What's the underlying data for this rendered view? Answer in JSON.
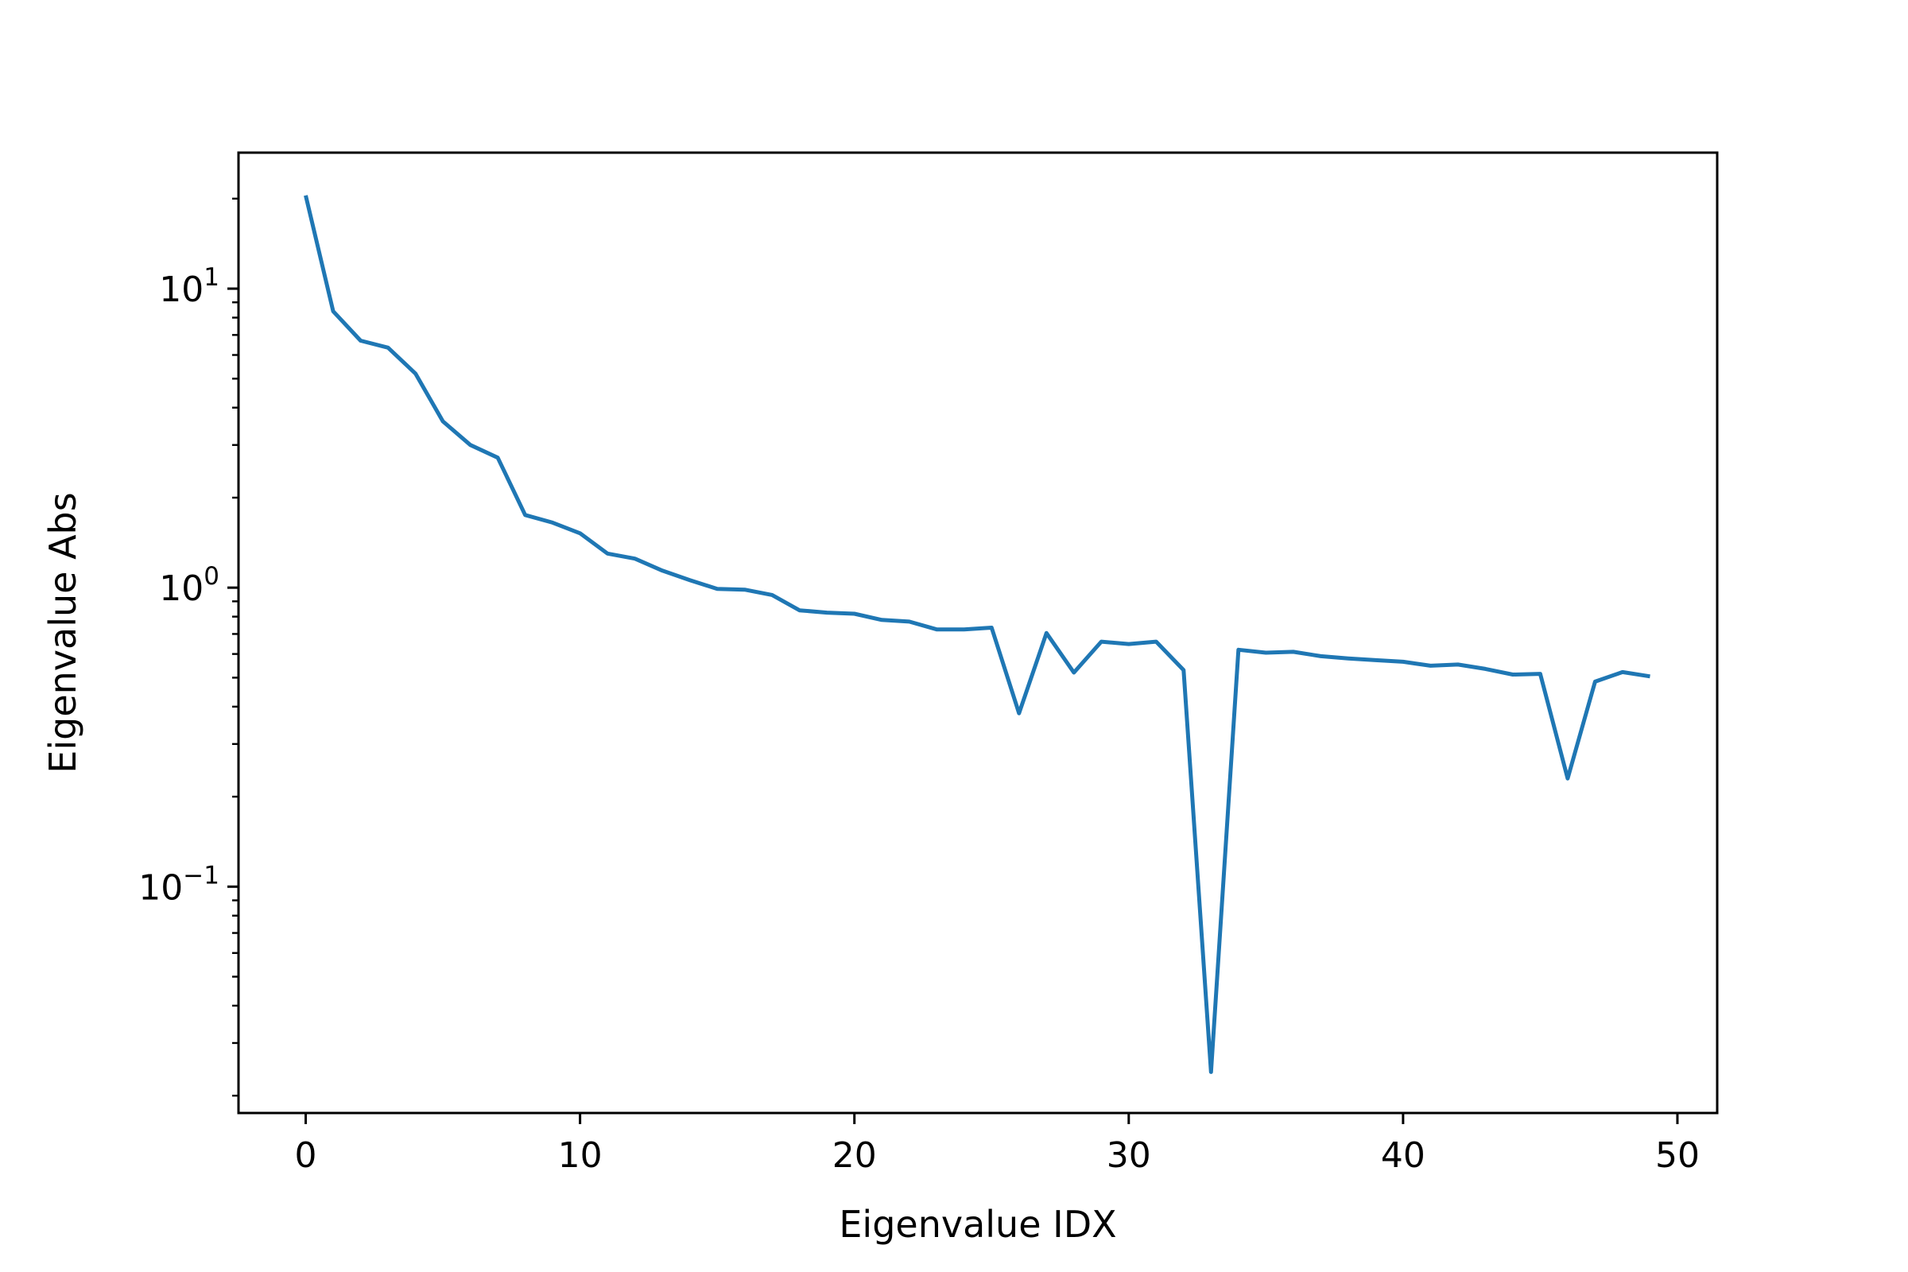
{
  "chart_data": {
    "type": "line",
    "title": "",
    "xlabel": "Eigenvalue IDX",
    "ylabel": "Eigenvalue Abs",
    "yscale": "log",
    "xlim": [
      -2.45,
      51.45
    ],
    "ylim": [
      0.0175,
      28.5
    ],
    "grid": false,
    "legend": "none",
    "x_ticks": [
      0,
      10,
      20,
      30,
      40,
      50
    ],
    "x_tick_labels": [
      "0",
      "10",
      "20",
      "30",
      "40",
      "50"
    ],
    "y_ticks": [
      {
        "value": 0.1,
        "base": "10",
        "exponent": "−1"
      },
      {
        "value": 1,
        "base": "10",
        "exponent": "0"
      },
      {
        "value": 10,
        "base": "10",
        "exponent": "1"
      }
    ],
    "series": [
      {
        "color": "#1f77b4",
        "x": [
          0,
          1,
          2,
          3,
          4,
          5,
          6,
          7,
          8,
          9,
          10,
          11,
          12,
          13,
          14,
          15,
          16,
          17,
          18,
          19,
          20,
          21,
          22,
          23,
          24,
          25,
          26,
          27,
          28,
          29,
          30,
          31,
          32,
          33,
          34,
          35,
          36,
          37,
          38,
          39,
          40,
          41,
          42,
          43,
          44,
          45,
          46,
          47,
          48,
          49
        ],
        "values": [
          20.5,
          8.4,
          6.7,
          6.35,
          5.2,
          3.6,
          3.0,
          2.72,
          1.75,
          1.65,
          1.52,
          1.3,
          1.25,
          1.14,
          1.06,
          0.99,
          0.985,
          0.945,
          0.84,
          0.825,
          0.818,
          0.78,
          0.77,
          0.725,
          0.725,
          0.735,
          0.38,
          0.705,
          0.52,
          0.66,
          0.648,
          0.66,
          0.53,
          0.024,
          0.62,
          0.606,
          0.61,
          0.59,
          0.58,
          0.572,
          0.565,
          0.548,
          0.553,
          0.535,
          0.512,
          0.515,
          0.23,
          0.485,
          0.522,
          0.505
        ]
      }
    ]
  }
}
